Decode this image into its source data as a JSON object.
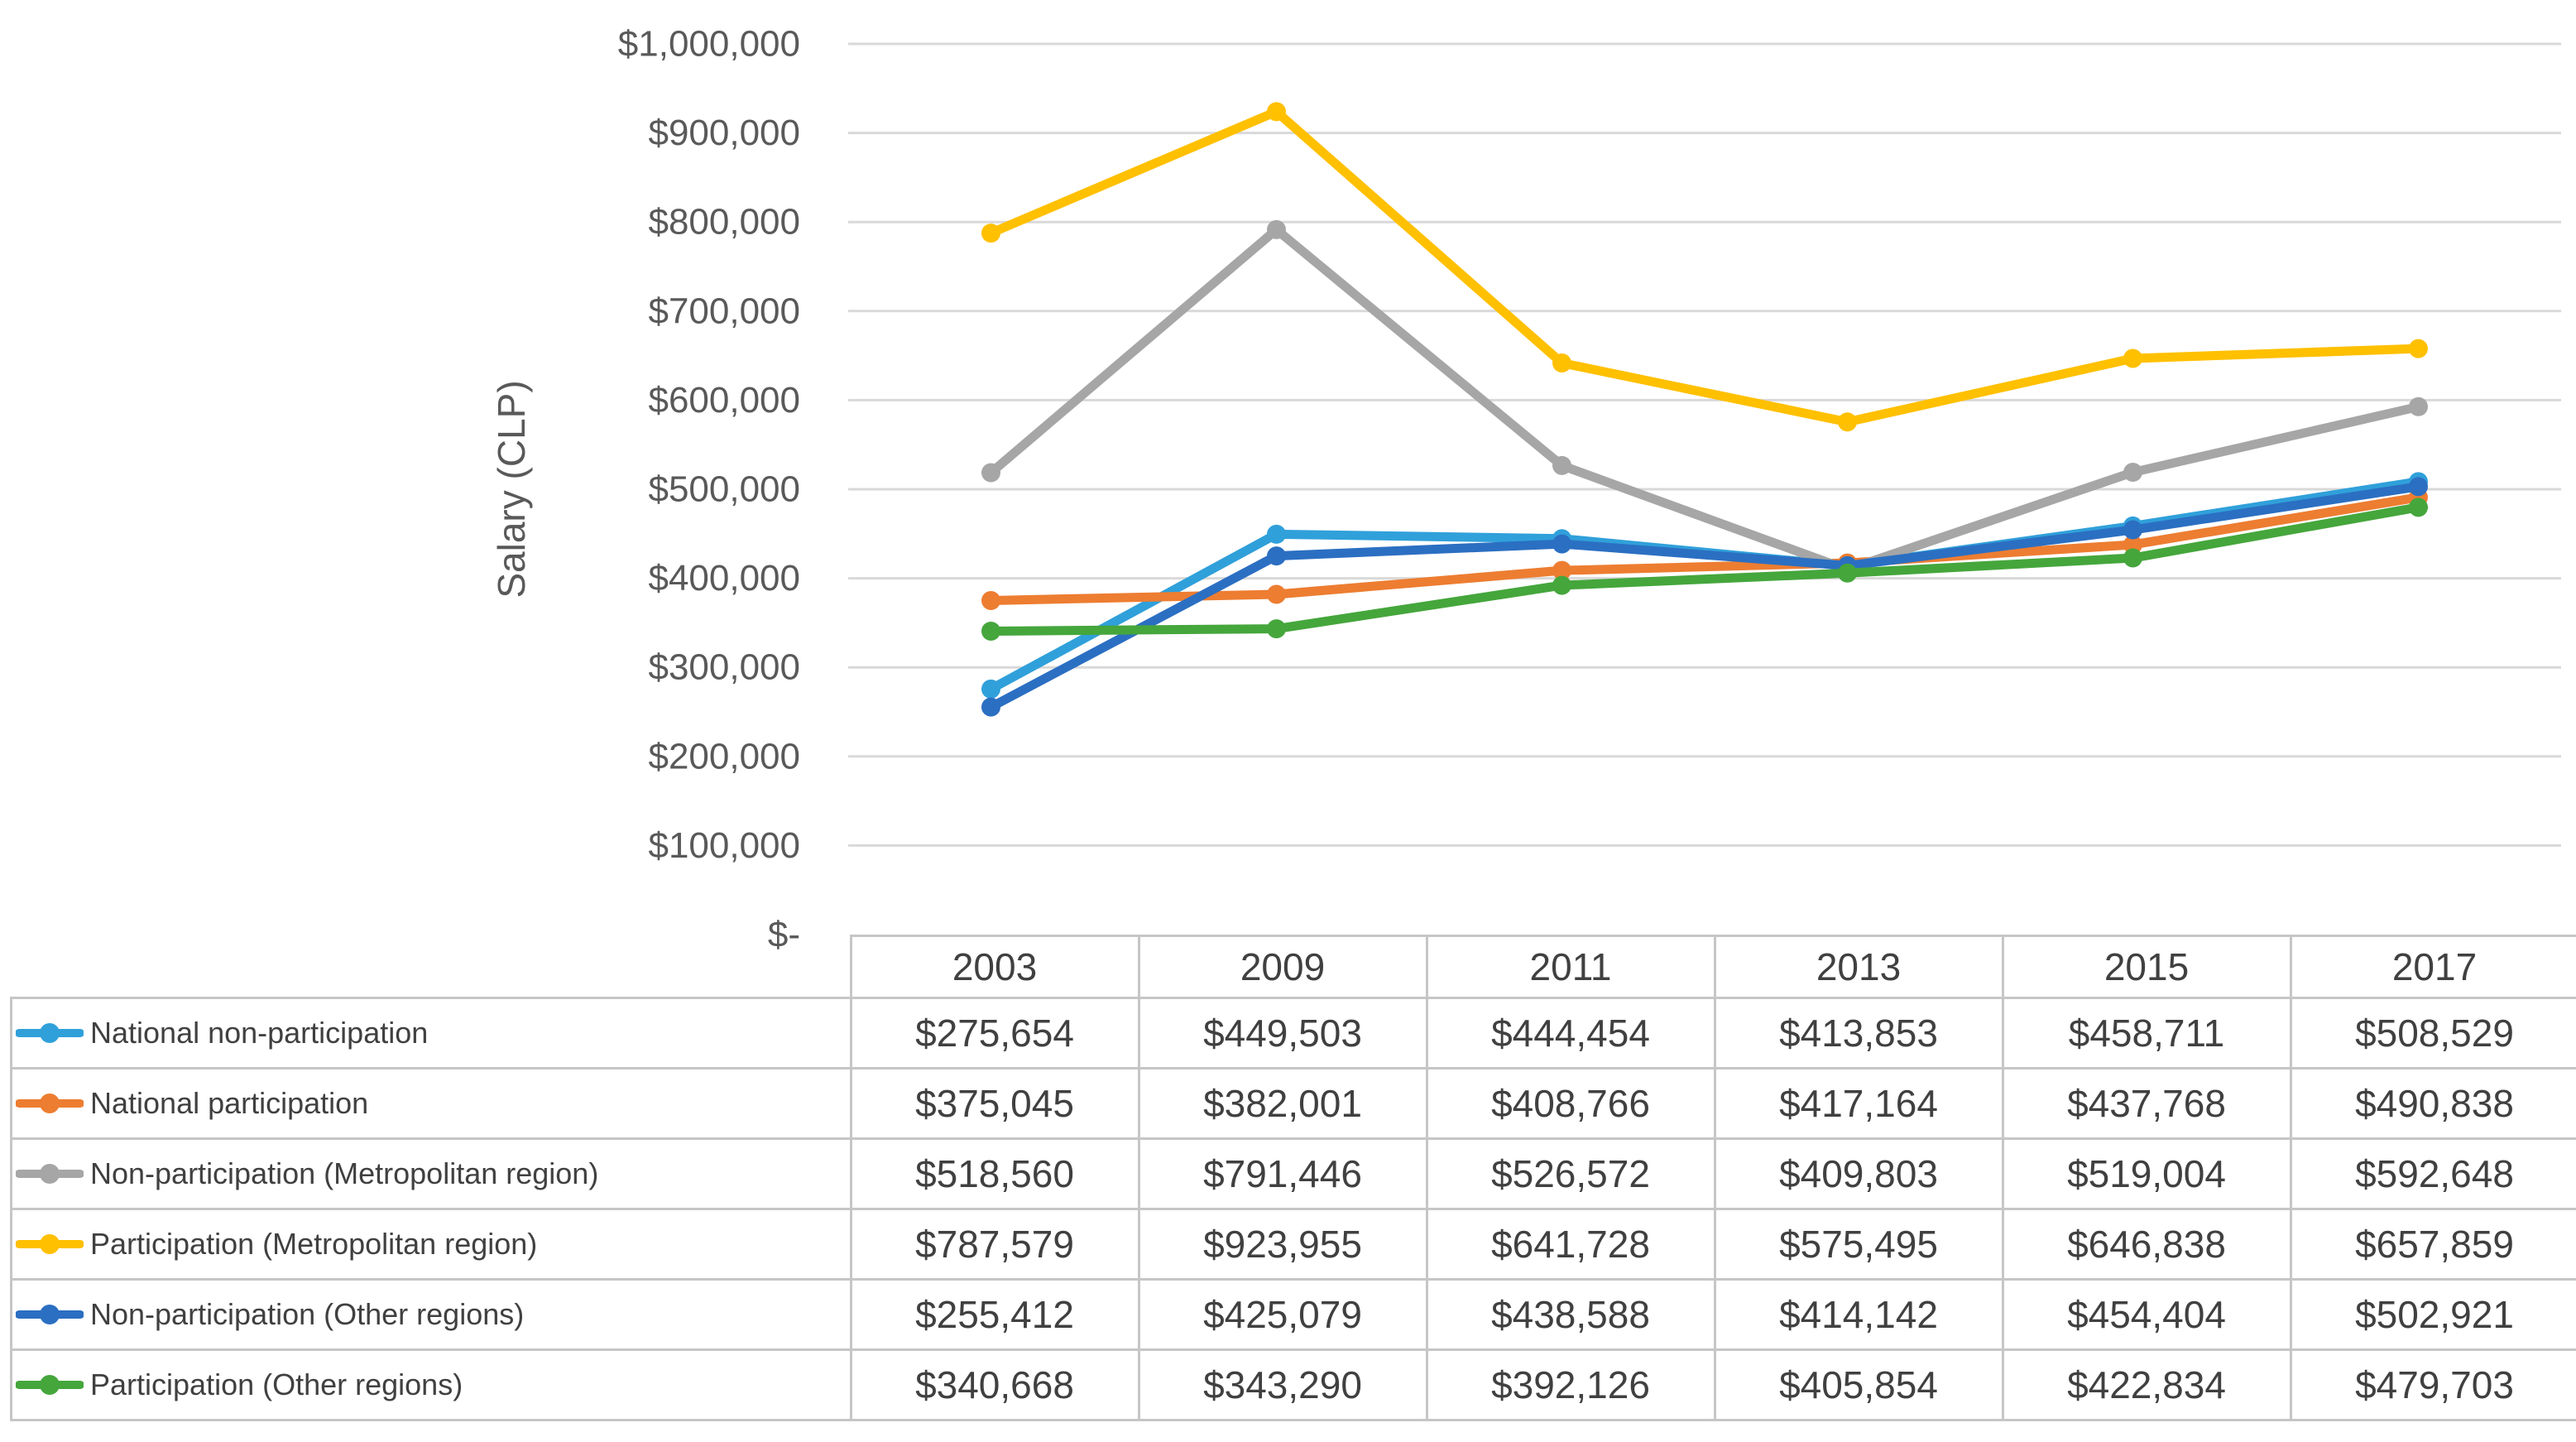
{
  "figure": {
    "kind": "excel-line-chart-with-data-table",
    "background_color": "#FFFFFF"
  },
  "chart_data": {
    "type": "line",
    "title": "",
    "xlabel": "",
    "ylabel": "Salary (CLP)",
    "categories": [
      "2003",
      "2009",
      "2011",
      "2013",
      "2015",
      "2017"
    ],
    "series": [
      {
        "name": "National non-participation",
        "color": "#30A0DA",
        "values": [
          275654,
          449503,
          444454,
          413853,
          458711,
          508529
        ],
        "formatted": [
          "$275,654",
          "$449,503",
          "$444,454",
          "$413,853",
          "$458,711",
          "$508,529"
        ]
      },
      {
        "name": "National participation",
        "color": "#ED7D31",
        "values": [
          375045,
          382001,
          408766,
          417164,
          437768,
          490838
        ],
        "formatted": [
          "$375,045",
          "$382,001",
          "$408,766",
          "$417,164",
          "$437,768",
          "$490,838"
        ]
      },
      {
        "name": "Non-participation (Metropolitan region)",
        "color": "#A6A6A6",
        "values": [
          518560,
          791446,
          526572,
          409803,
          519004,
          592648
        ],
        "formatted": [
          "$518,560",
          "$791,446",
          "$526,572",
          "$409,803",
          "$519,004",
          "$592,648"
        ]
      },
      {
        "name": "Participation (Metropolitan region)",
        "color": "#FFC000",
        "values": [
          787579,
          923955,
          641728,
          575495,
          646838,
          657859
        ],
        "formatted": [
          "$787,579",
          "$923,955",
          "$641,728",
          "$575,495",
          "$646,838",
          "$657,859"
        ]
      },
      {
        "name": "Non-participation (Other regions)",
        "color": "#2B6FC2",
        "values": [
          255412,
          425079,
          438588,
          414142,
          454404,
          502921
        ],
        "formatted": [
          "$255,412",
          "$425,079",
          "$438,588",
          "$414,142",
          "$454,404",
          "$502,921"
        ]
      },
      {
        "name": "Participation (Other regions)",
        "color": "#45A63C",
        "values": [
          340668,
          343290,
          392126,
          405854,
          422834,
          479703
        ],
        "formatted": [
          "$340,668",
          "$343,290",
          "$392,126",
          "$405,854",
          "$422,834",
          "$479,703"
        ]
      }
    ],
    "y_ticks": [
      {
        "value": 1000000,
        "label": "$1,000,000"
      },
      {
        "value": 900000,
        "label": "$900,000"
      },
      {
        "value": 800000,
        "label": "$800,000"
      },
      {
        "value": 700000,
        "label": "$700,000"
      },
      {
        "value": 600000,
        "label": "$600,000"
      },
      {
        "value": 500000,
        "label": "$500,000"
      },
      {
        "value": 400000,
        "label": "$400,000"
      },
      {
        "value": 300000,
        "label": "$300,000"
      },
      {
        "value": 200000,
        "label": "$200,000"
      },
      {
        "value": 100000,
        "label": "$100,000"
      },
      {
        "value": 0,
        "label": "$-"
      }
    ],
    "ylim": [
      0,
      1000000
    ],
    "grid": "horizontal",
    "gridline_color": "#D9D9D9",
    "legend_position": "left-column-of-data-table",
    "marker": "circle"
  }
}
